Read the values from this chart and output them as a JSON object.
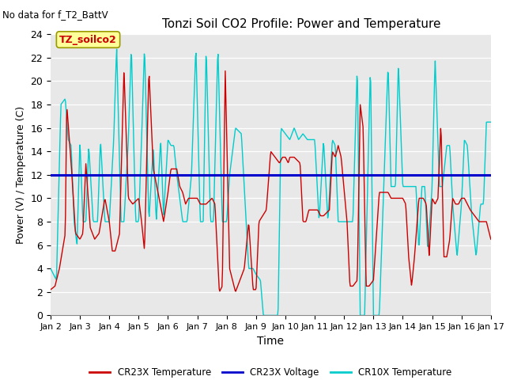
{
  "title": "Tonzi Soil CO2 Profile: Power and Temperature",
  "no_data_text": "No data for f_T2_BattV",
  "xlabel": "Time",
  "ylabel": "Power (V) / Temperature (C)",
  "ylim": [
    0,
    24
  ],
  "yticks": [
    0,
    2,
    4,
    6,
    8,
    10,
    12,
    14,
    16,
    18,
    20,
    22,
    24
  ],
  "xlim": [
    0,
    15
  ],
  "xtick_labels": [
    "Jan 2",
    "Jan 3",
    "Jan 4",
    "Jan 5",
    "Jan 6",
    "Jan 7",
    "Jan 8",
    "Jan 9",
    "Jan 10",
    "Jan 11",
    "Jan 12",
    "Jan 13",
    "Jan 14",
    "Jan 15",
    "Jan 16",
    "Jan 17"
  ],
  "legend_labels": [
    "CR23X Temperature",
    "CR23X Voltage",
    "CR10X Temperature"
  ],
  "legend_colors": [
    "#cc0000",
    "#0000cc",
    "#00cccc"
  ],
  "bg_color": "#e8e8e8",
  "voltage_line_y": 12.0,
  "annotation_box_text": "TZ_soilco2",
  "annotation_box_color": "#ffff99",
  "annotation_box_edge": "#999900",
  "title_fontsize": 11,
  "label_fontsize": 9,
  "tick_fontsize": 8,
  "figsize": [
    6.4,
    4.8
  ],
  "dpi": 100
}
